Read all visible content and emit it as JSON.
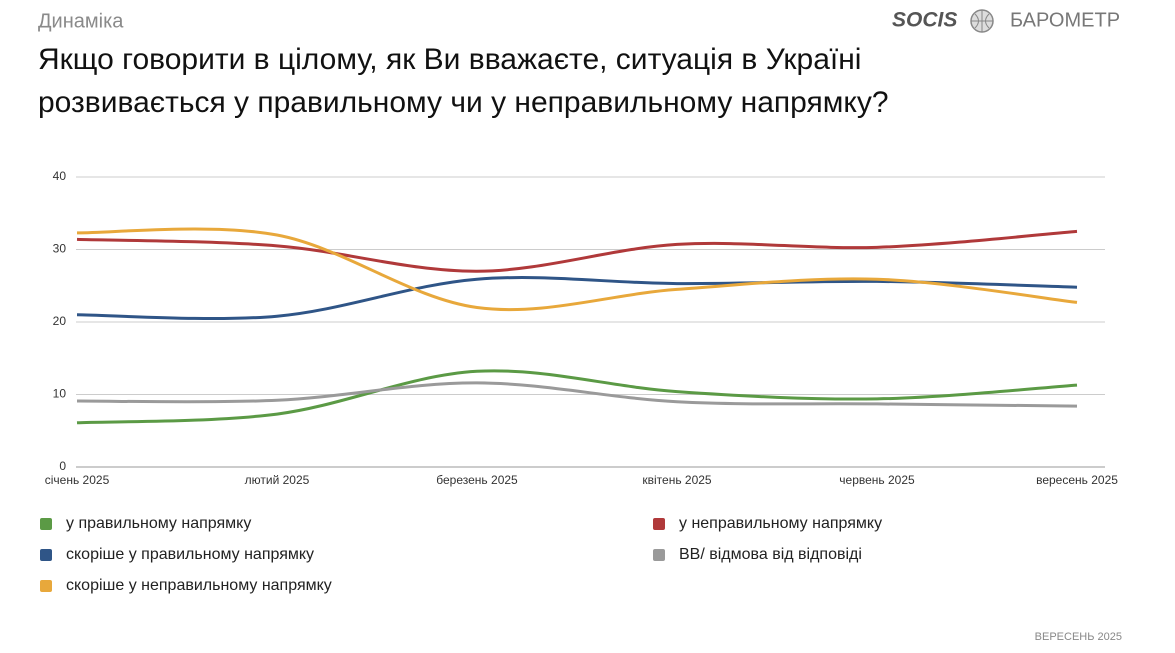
{
  "header": {
    "section": "Динаміка",
    "logo": "SOCIS",
    "brand": "БАРОМЕТР"
  },
  "footer": "ВЕРЕСЕНЬ 2025",
  "chart_data": {
    "type": "line",
    "title": "Якщо говорити в цілому, як Ви вважаєте, ситуація в Україні розвивається у правильному чи у неправильному напрямку?",
    "categories": [
      "січень 2025",
      "лютий 2025",
      "березень 2025",
      "квітень 2025",
      "червень 2025",
      "вересень 2025"
    ],
    "series": [
      {
        "name": "у правильному напрямку",
        "color": "#5b9a45",
        "values": [
          6.1,
          7.3,
          13.2,
          10.4,
          9.4,
          11.3
        ]
      },
      {
        "name": "у неправильному напрямку",
        "color": "#b0393a",
        "values": [
          31.4,
          30.5,
          27.0,
          30.7,
          30.3,
          32.5
        ]
      },
      {
        "name": "скоріше у правильному напрямку",
        "color": "#2f5587",
        "values": [
          21.0,
          20.8,
          25.9,
          25.3,
          25.6,
          24.8
        ]
      },
      {
        "name": "ВВ/ відмова від відповіді",
        "color": "#9a9a9a",
        "values": [
          9.1,
          9.2,
          11.6,
          9.0,
          8.7,
          8.4
        ]
      },
      {
        "name": "скоріше у неправильному напрямку",
        "color": "#e8a83b",
        "values": [
          32.3,
          32.0,
          22.0,
          24.5,
          25.9,
          22.7
        ]
      }
    ],
    "ylim": [
      0,
      40
    ],
    "yticks": [
      0,
      10,
      20,
      30,
      40
    ],
    "grid": true
  }
}
